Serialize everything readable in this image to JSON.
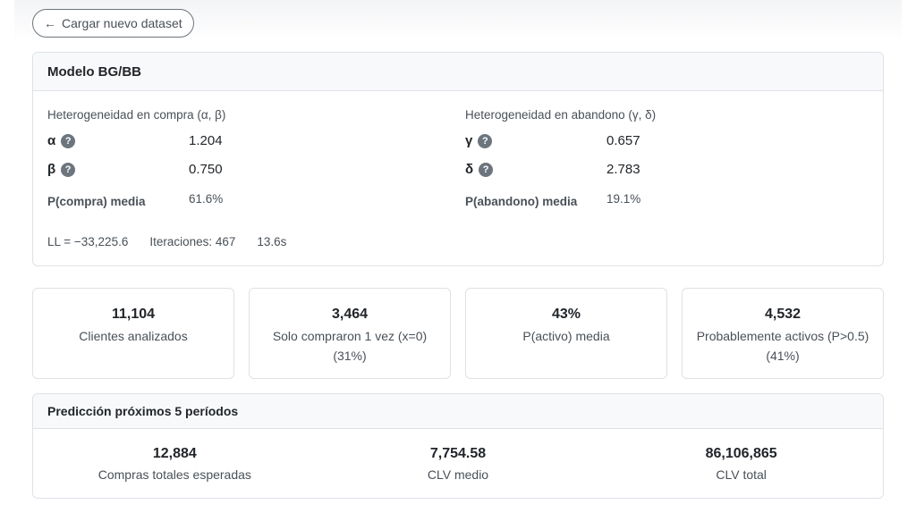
{
  "nav": {
    "back_label": "Cargar nuevo dataset"
  },
  "model": {
    "title": "Modelo BG/BB",
    "purchase": {
      "heading": "Heterogeneidad en compra (α, β)",
      "params": [
        {
          "symbol": "α",
          "value": "1.204"
        },
        {
          "symbol": "β",
          "value": "0.750"
        }
      ],
      "mean_label": "P(compra) media",
      "mean_value": "61.6%"
    },
    "dropout": {
      "heading": "Heterogeneidad en abandono (γ, δ)",
      "params": [
        {
          "symbol": "γ",
          "value": "0.657"
        },
        {
          "symbol": "δ",
          "value": "2.783"
        }
      ],
      "mean_label": "P(abandono) media",
      "mean_value": "19.1%"
    },
    "help_glyph": "?",
    "log_likelihood": "LL = −33,225.6",
    "iterations": "Iteraciones: 467",
    "time": "13.6s"
  },
  "stats": [
    {
      "value": "11,104",
      "label": "Clientes analizados"
    },
    {
      "value": "3,464",
      "label": "Solo compraron 1 vez (x=0) (31%)"
    },
    {
      "value": "43%",
      "label": "P(activo) media"
    },
    {
      "value": "4,532",
      "label": "Probablemente activos (P>0.5) (41%)"
    }
  ],
  "prediction": {
    "title": "Predicción próximos 5 períodos",
    "items": [
      {
        "value": "12,884",
        "label": "Compras totales esperadas"
      },
      {
        "value": "7,754.58",
        "label": "CLV medio"
      },
      {
        "value": "86,106,865",
        "label": "CLV total"
      }
    ]
  },
  "icons": {
    "back": "arrow-left-icon",
    "help": "question-circle-icon"
  },
  "colors": {
    "border": "#dee2e6",
    "header_bg": "#f8f9fa",
    "muted_text": "#495057",
    "help_icon": "#6c757d"
  }
}
